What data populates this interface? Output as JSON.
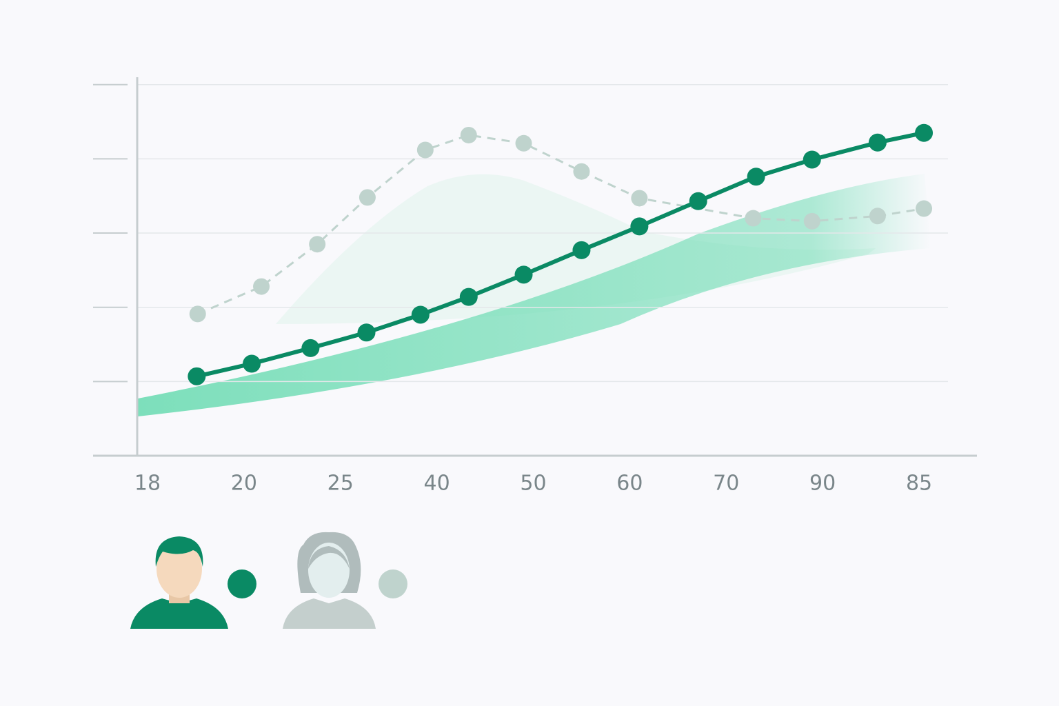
{
  "chart_data": {
    "type": "line",
    "xlim": [
      -0.1,
      8.3
    ],
    "xticks": [
      {
        "value": 0,
        "label": "18"
      },
      {
        "value": 1,
        "label": "20"
      },
      {
        "value": 2,
        "label": "25"
      },
      {
        "value": 3,
        "label": "40"
      },
      {
        "value": 4,
        "label": "50"
      },
      {
        "value": 5,
        "label": "60"
      },
      {
        "value": 6,
        "label": "70"
      },
      {
        "value": 7,
        "label": "90"
      },
      {
        "value": 8,
        "label": "85"
      }
    ],
    "ylim": [
      0,
      5.1
    ],
    "yticks": [
      1,
      2,
      3,
      4,
      5
    ],
    "grid": true,
    "series": [
      {
        "color": "#0a8a64",
        "dash": false,
        "x": [
          0.51,
          1.08,
          1.69,
          2.27,
          2.83,
          3.33,
          3.9,
          4.5,
          5.1,
          5.71,
          6.31,
          6.89,
          7.57,
          8.05
        ],
        "values": [
          1.07,
          1.24,
          1.45,
          1.66,
          1.9,
          2.14,
          2.44,
          2.77,
          3.09,
          3.43,
          3.76,
          3.99,
          4.22,
          4.35
        ]
      },
      {
        "color": "#bfd3cd",
        "dash": true,
        "x": [
          0.52,
          1.18,
          1.76,
          2.28,
          2.88,
          3.33,
          3.9,
          4.5,
          5.1,
          6.28,
          6.89,
          7.57,
          8.05
        ],
        "values": [
          1.91,
          2.28,
          2.85,
          3.48,
          4.12,
          4.32,
          4.21,
          3.83,
          3.47,
          3.2,
          3.16,
          3.23,
          3.33
        ]
      }
    ]
  }
}
